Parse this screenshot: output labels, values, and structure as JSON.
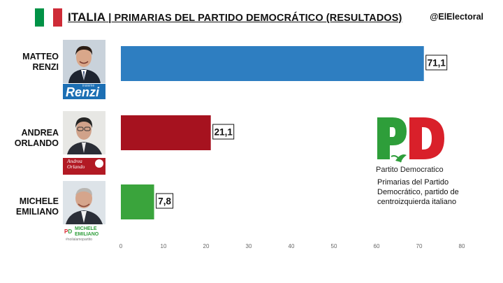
{
  "header": {
    "country": "ITALIA",
    "title": "| PRIMARIAS DEL PARTIDO DEMOCRÁTICO (RESULTADOS)",
    "handle": "@ElElectoral",
    "flag_colors": [
      "#009246",
      "#ffffff",
      "#ce2b37"
    ]
  },
  "candidates": [
    {
      "name": "MATTEO\nRENZI",
      "logo_text": "Renzi",
      "logo_prefix": "insieme",
      "photo_icon": "matteo-renzi-photo"
    },
    {
      "name": "ANDREA\nORLANDO",
      "logo_text": "Andrea\nOrlando",
      "photo_icon": "andrea-orlando-photo"
    },
    {
      "name": "MICHELE\nEMILIANO",
      "logo_text": "MICHELE\nEMILIANO",
      "logo_tag": "#noilalamopartito",
      "photo_icon": "michele-emiliano-photo"
    }
  ],
  "chart_data": {
    "type": "bar",
    "orientation": "horizontal",
    "categories": [
      "MATTEO RENZI",
      "ANDREA ORLANDO",
      "MICHELE EMILIANO"
    ],
    "values": [
      71.1,
      21.1,
      7.8
    ],
    "value_labels": [
      "71,1",
      "21,1",
      "7,8"
    ],
    "colors": [
      "#2e7ec1",
      "#a6121f",
      "#3aa43c"
    ],
    "xlim": [
      0,
      80
    ],
    "xticks": [
      "0",
      "10",
      "20",
      "30",
      "40",
      "50",
      "60",
      "70",
      "80"
    ],
    "grid": false,
    "title": "PRIMARIAS DEL PARTIDO DEMOCRÁTICO (RESULTADOS)"
  },
  "party": {
    "logo_text": "Partito Democratico",
    "logo_colors": [
      "#2e9e3a",
      "#d9202a"
    ],
    "note": "Primarias del Partido Democrático, partido de centroizquierda italiano"
  }
}
